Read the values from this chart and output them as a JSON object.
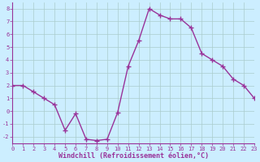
{
  "x": [
    0,
    1,
    2,
    3,
    4,
    5,
    6,
    7,
    8,
    9,
    10,
    11,
    12,
    13,
    14,
    15,
    16,
    17,
    18,
    19,
    20,
    21,
    22,
    23
  ],
  "y": [
    2,
    2,
    1.5,
    1,
    0.5,
    -1.5,
    -0.2,
    -2.2,
    -2.3,
    -2.2,
    -0.1,
    3.5,
    5.5,
    8.0,
    7.5,
    7.2,
    7.2,
    6.5,
    4.5,
    4.0,
    3.5,
    2.5,
    2.0,
    1.0
  ],
  "xlim": [
    0,
    23
  ],
  "ylim": [
    -2.5,
    8.5
  ],
  "yticks": [
    -2,
    -1,
    0,
    1,
    2,
    3,
    4,
    5,
    6,
    7,
    8
  ],
  "xticks": [
    0,
    1,
    2,
    3,
    4,
    5,
    6,
    7,
    8,
    9,
    10,
    11,
    12,
    13,
    14,
    15,
    16,
    17,
    18,
    19,
    20,
    21,
    22,
    23
  ],
  "xlabel": "Windchill (Refroidissement éolien,°C)",
  "line_color": "#993399",
  "marker": "+",
  "marker_size": 4,
  "background_color": "#cceeff",
  "grid_color": "#aacccc",
  "tick_color": "#993399",
  "label_color": "#993399",
  "line_width": 1.0,
  "tick_fontsize": 5.0,
  "xlabel_fontsize": 6.0
}
